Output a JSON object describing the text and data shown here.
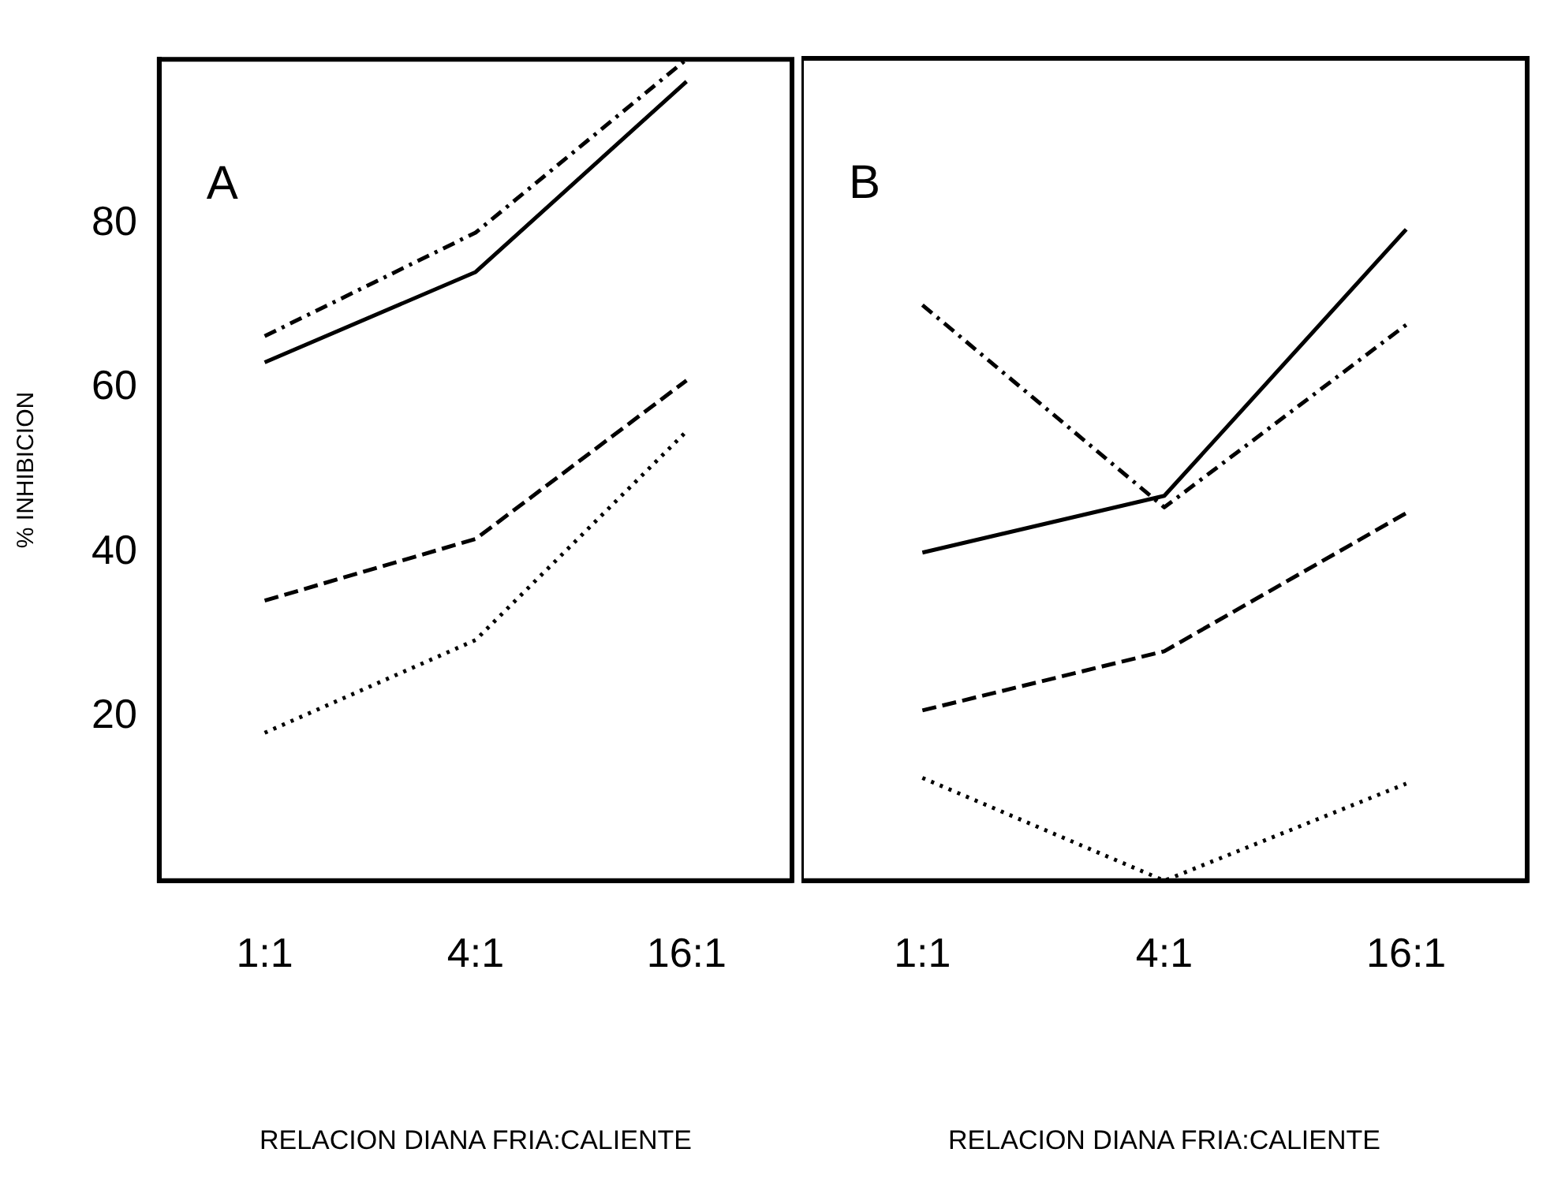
{
  "chart_data": [
    {
      "type": "line",
      "title": "A",
      "ylabel": "% INHIBICION",
      "xlabel": "RELACION DIANA FRIA:CALIENTE",
      "categories": [
        "1:1",
        "4:1",
        "16:1"
      ],
      "ylim": [
        0,
        100
      ],
      "yticks": [
        20,
        40,
        60,
        80
      ],
      "grid": false,
      "legend": false,
      "marker": "none",
      "series": [
        {
          "color": "#000000",
          "line_style": "solid",
          "values": [
            63.1,
            74.1,
            97.3
          ]
        },
        {
          "color": "#000000",
          "line_style": "dashdot",
          "values": [
            66.3,
            78.9,
            100
          ]
        },
        {
          "color": "#000000",
          "line_style": "dashed",
          "values": [
            34.1,
            41.6,
            60.9
          ]
        },
        {
          "color": "#000000",
          "line_style": "dotted",
          "values": [
            18.0,
            29.3,
            54.7
          ]
        }
      ]
    },
    {
      "type": "line",
      "title": "B",
      "xlabel": "RELACION DIANA FRIA:CALIENTE",
      "categories": [
        "1:1",
        "4:1",
        "16:1"
      ],
      "ylim": [
        0,
        100
      ],
      "yticks": [
        20,
        40,
        60,
        80
      ],
      "tick_labels": "x",
      "grid": false,
      "legend": false,
      "marker": "none",
      "series": [
        {
          "color": "#000000",
          "line_style": "solid",
          "values": [
            39.9,
            46.8,
            79.2
          ]
        },
        {
          "color": "#000000",
          "line_style": "dashdot",
          "values": [
            70.0,
            45.4,
            67.6
          ]
        },
        {
          "color": "#000000",
          "line_style": "dashed",
          "values": [
            20.7,
            27.9,
            44.7
          ]
        },
        {
          "color": "#000000",
          "line_style": "dotted",
          "values": [
            12.5,
            0,
            11.8
          ]
        }
      ]
    }
  ]
}
